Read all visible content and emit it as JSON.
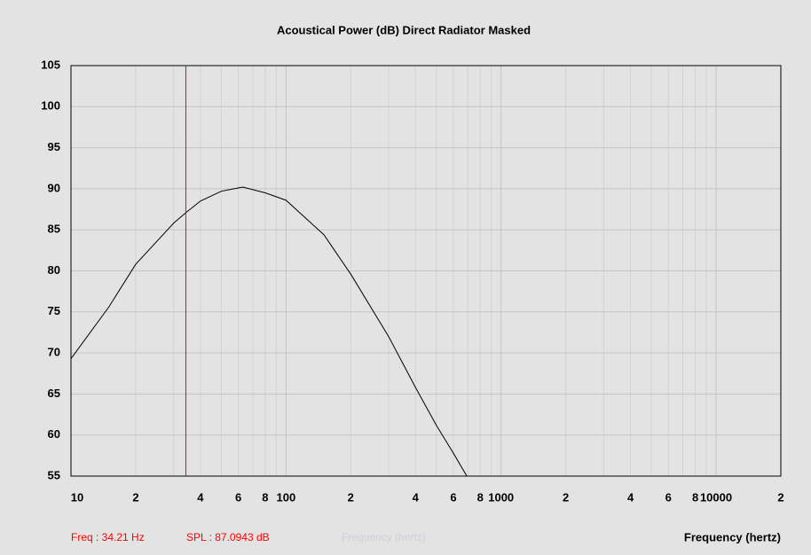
{
  "chart_data": {
    "type": "line",
    "title": "Acoustical Power (dB)  Direct Radiator  Masked",
    "x_label": "Frequency (hertz)",
    "status": [
      "Freq : 34.21 Hz",
      "SPL : 87.0943 dB"
    ],
    "ghost_label": "Frequency (hertz)",
    "log_x": true,
    "grid": true,
    "cursor_x": 34.21,
    "cursor_color": "#ff0000",
    "x": [
      10,
      15,
      20,
      30,
      34.21,
      40,
      50,
      63,
      80,
      100,
      150,
      200,
      300,
      400,
      500,
      600,
      693
    ],
    "series": [
      {
        "name": "Acoustical Power",
        "color": "#000000",
        "values": [
          69.3,
          75.6,
          80.8,
          85.8,
          87.09,
          88.5,
          89.7,
          90.2,
          89.5,
          88.6,
          84.4,
          79.6,
          72,
          65.8,
          61.2,
          57.8,
          55
        ]
      }
    ],
    "xlim": [
      10,
      20000
    ],
    "xticks": [
      10,
      {
        "value": 20,
        "label": "2"
      },
      {
        "value": 40,
        "label": "4"
      },
      {
        "value": 60,
        "label": "6"
      },
      {
        "value": 80,
        "label": "8"
      },
      100,
      {
        "value": 200,
        "label": "2"
      },
      {
        "value": 400,
        "label": "4"
      },
      {
        "value": 600,
        "label": "6"
      },
      {
        "value": 800,
        "label": "8"
      },
      1000,
      {
        "value": 2000,
        "label": "2"
      },
      {
        "value": 4000,
        "label": "4"
      },
      {
        "value": 6000,
        "label": "6"
      },
      {
        "value": 8000,
        "label": "8"
      },
      10000,
      {
        "value": 20000,
        "label": "2"
      }
    ],
    "minor_xticks": [
      30,
      50,
      70,
      90,
      300,
      500,
      700,
      900,
      3000,
      5000,
      7000,
      9000
    ],
    "ylim": [
      55,
      105
    ],
    "yticks": [
      55,
      60,
      65,
      70,
      75,
      80,
      85,
      90,
      95,
      100,
      105
    ]
  }
}
